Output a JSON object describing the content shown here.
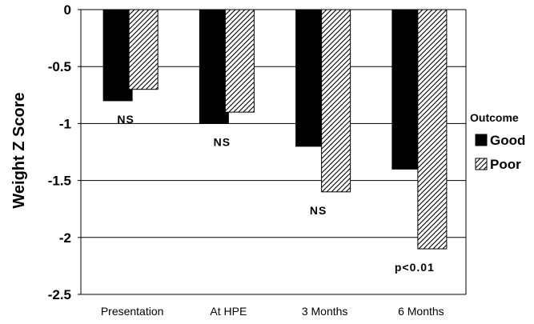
{
  "chart_data": {
    "type": "bar",
    "ylabel": "Weight Z Score",
    "xlabel": "",
    "categories": [
      "Presentation",
      "At HPE",
      "3 Months",
      "6 Months"
    ],
    "series": [
      {
        "name": "Good",
        "values": [
          -0.8,
          -1.0,
          -1.2,
          -1.4
        ],
        "color": "#000000",
        "fill": "solid"
      },
      {
        "name": "Poor",
        "values": [
          -0.7,
          -0.9,
          -1.6,
          -2.1
        ],
        "color": "#000000",
        "fill": "diagonal-hatch"
      }
    ],
    "ylim": [
      -2.5,
      0
    ],
    "yticks": [
      0,
      -0.5,
      -1,
      -1.5,
      -2,
      -2.5
    ],
    "ytick_labels": [
      "0",
      "-0.5",
      "-1",
      "-1.5",
      "-2",
      "-2.5"
    ],
    "grid": true,
    "annotations": [
      "NS",
      "NS",
      "NS",
      "p<0.01"
    ],
    "legend": {
      "title": "Outcome",
      "position": "right",
      "entries": [
        "Good",
        "Poor"
      ]
    }
  }
}
